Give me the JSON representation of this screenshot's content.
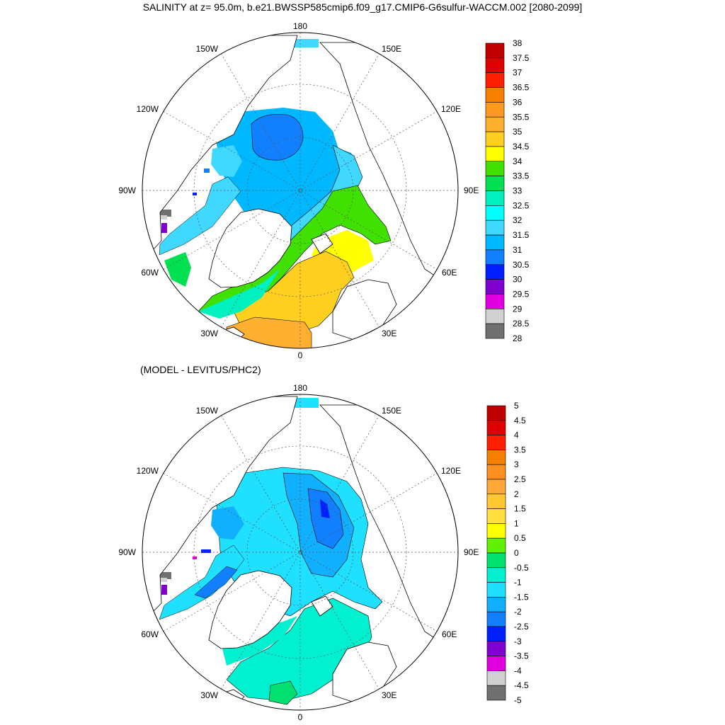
{
  "title": "SALINITY at z=  95.0m, b.e21.BWSSP585cmip6.f09_g17.CMIP6-G6sulfur-WACCM.002 [2080-2099]",
  "subtitle": "(MODEL - LEVITUS/PHC2)",
  "meridian_labels": [
    "180",
    "150E",
    "120E",
    "90E",
    "60E",
    "30E",
    "0",
    "30W",
    "60W",
    "90W",
    "120W",
    "150W"
  ],
  "colorbars": [
    {
      "name": "salinity",
      "labels": [
        "38",
        "37.5",
        "37",
        "36.5",
        "36",
        "35.5",
        "35",
        "34.5",
        "34",
        "33.5",
        "33",
        "32.5",
        "32",
        "31.5",
        "31",
        "30.5",
        "30",
        "29.5",
        "29",
        "28.5",
        "28"
      ],
      "colors": [
        "#c00000",
        "#e00000",
        "#ff2000",
        "#f58000",
        "#ff9a20",
        "#ffb030",
        "#ffd020",
        "#ffff00",
        "#40e000",
        "#00e050",
        "#00f0c0",
        "#00ffff",
        "#40d8ff",
        "#00b8ff",
        "#1080ff",
        "#0020ff",
        "#8000d0",
        "#e000e0",
        "#d0d0d0",
        "#707070"
      ]
    },
    {
      "name": "difference",
      "labels": [
        "5",
        "4.5",
        "4",
        "3.5",
        "3",
        "2.5",
        "2",
        "1.5",
        "1",
        "0.5",
        "0",
        "-0.5",
        "-1",
        "-1.5",
        "-2",
        "-2.5",
        "-3",
        "-3.5",
        "-4",
        "-4.5",
        "-5"
      ],
      "colors": [
        "#c00000",
        "#e00000",
        "#ff2000",
        "#f58000",
        "#ff9020",
        "#ffa838",
        "#ffc830",
        "#ffe040",
        "#ffff00",
        "#60f000",
        "#00e070",
        "#00f0d0",
        "#20e0ff",
        "#10b0ff",
        "#1080ff",
        "#0020ff",
        "#8000d0",
        "#e000e0",
        "#d0d0d0",
        "#707070"
      ]
    }
  ]
}
